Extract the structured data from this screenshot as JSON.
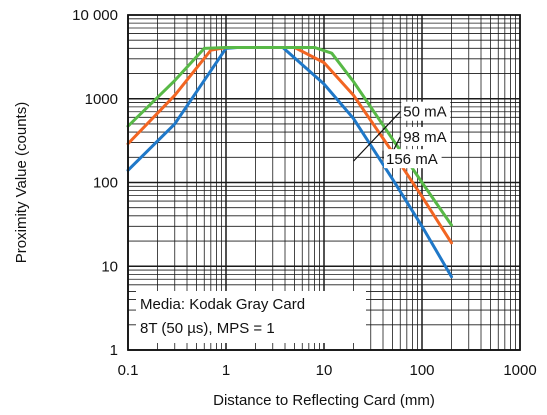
{
  "chart_data": {
    "type": "line",
    "xscale": "log",
    "yscale": "log",
    "xlim": [
      0.1,
      1000
    ],
    "ylim": [
      1,
      10000
    ],
    "xlabel": "Distance to Reflecting Card (mm)",
    "ylabel": "Proximity Value (counts)",
    "x_ticks": [
      {
        "value": 0.1,
        "label": "0.1"
      },
      {
        "value": 1,
        "label": "1"
      },
      {
        "value": 10,
        "label": "10"
      },
      {
        "value": 100,
        "label": "100"
      },
      {
        "value": 1000,
        "label": "1000"
      }
    ],
    "y_ticks": [
      {
        "value": 1,
        "label": "1"
      },
      {
        "value": 10,
        "label": "10"
      },
      {
        "value": 100,
        "label": "100"
      },
      {
        "value": 1000,
        "label": "1000"
      },
      {
        "value": 10000,
        "label": "10 000"
      }
    ],
    "grid": true,
    "series": [
      {
        "name": "50 mA",
        "color": "#1f78c8",
        "x": [
          0.1,
          0.3,
          1,
          1.3,
          3.8,
          10,
          20,
          50,
          100,
          200
        ],
        "y": [
          140,
          500,
          4000,
          4095,
          4095,
          1500,
          580,
          110,
          30,
          7.5
        ]
      },
      {
        "name": "98 mA",
        "color": "#f26522",
        "x": [
          0.1,
          0.3,
          0.7,
          1,
          5,
          10,
          20,
          50,
          100,
          200
        ],
        "y": [
          290,
          1100,
          3800,
          4095,
          4095,
          2700,
          1100,
          230,
          68,
          19
        ]
      },
      {
        "name": "156 mA",
        "color": "#58b947",
        "x": [
          0.1,
          0.3,
          0.6,
          1,
          8,
          12,
          20,
          50,
          100,
          200
        ],
        "y": [
          470,
          1650,
          4000,
          4095,
          4095,
          3500,
          1600,
          330,
          100,
          31
        ]
      }
    ],
    "series_labels": [
      {
        "series": 0,
        "text": "50 mA",
        "line_from": [
          20,
          180
        ],
        "line_to": [
          60,
          700
        ]
      },
      {
        "series": 1,
        "text": "98 mA",
        "line_from": [
          50,
          230
        ],
        "line_to": [
          60,
          350
        ]
      },
      {
        "series": 2,
        "text": "156 mA",
        "line_from": [
          40,
          240
        ],
        "line_to": [
          40,
          190
        ]
      }
    ],
    "annotation_lines": [
      "Media: Kodak Gray Card",
      "8T (50 µs), MPS = 1"
    ]
  }
}
